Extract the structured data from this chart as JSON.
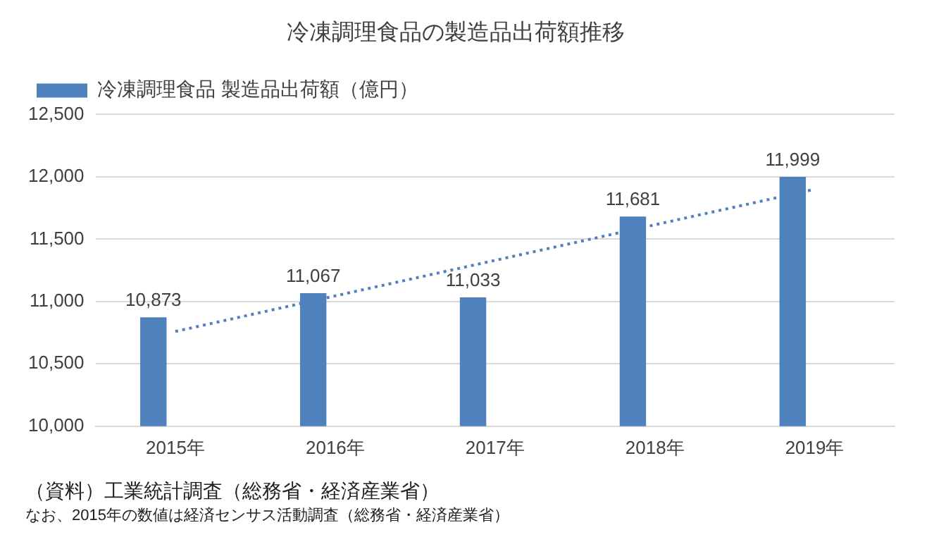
{
  "chart_data": {
    "type": "bar",
    "title": "冷凍調理食品の製造品出荷額推移",
    "categories": [
      "2015年",
      "2016年",
      "2017年",
      "2018年",
      "2019年"
    ],
    "series": [
      {
        "name": "冷凍調理食品 製造品出荷額（億円）",
        "color": "#4f81bd",
        "values": [
          10873,
          11067,
          11033,
          11681,
          11999
        ],
        "value_labels": [
          "10,873",
          "11,067",
          "11,033",
          "11,681",
          "11,999"
        ]
      },
      {
        "type": "line",
        "color": "#4f81bd",
        "x": [
          "2015年",
          "2019年"
        ],
        "values": [
          10760,
          11900
        ],
        "line_style": "dotted",
        "marker": "none"
      }
    ],
    "ylim": [
      10000,
      12500
    ],
    "yticks": [
      {
        "value": 10000,
        "label": "10,000"
      },
      {
        "value": 10500,
        "label": "10,500"
      },
      {
        "value": 11000,
        "label": "11,000"
      },
      {
        "value": 11500,
        "label": "11,500"
      },
      {
        "value": 12000,
        "label": "12,000"
      },
      {
        "value": 12500,
        "label": "12,500"
      }
    ],
    "grid": "y",
    "legend": "top left",
    "annotations": [
      "（資料）工業統計調査（総務省・経済産業省）",
      "なお、2015年の数値は経済センサス活動調査（総務省・経済産業省）"
    ]
  }
}
